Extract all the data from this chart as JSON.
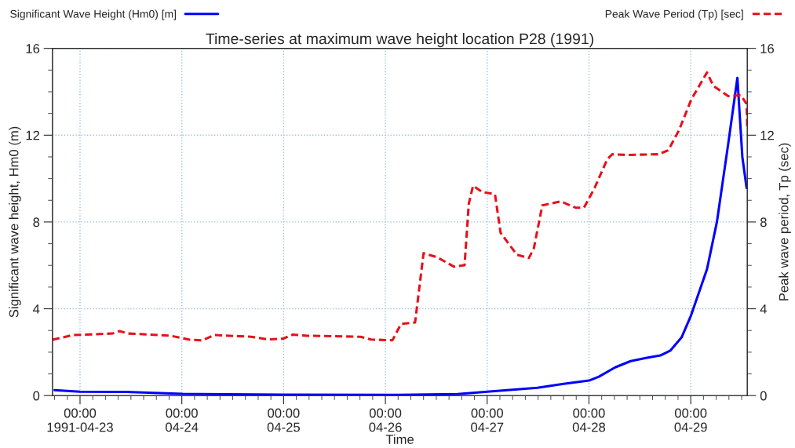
{
  "chart_data": {
    "type": "line",
    "title": "Time-series at maximum wave height location P28 (1991)",
    "xlabel": "Time",
    "ylabel": "Significant wave height, Hm0 (m)",
    "y2label": "Peak wave period, Tp (sec)",
    "xlim": [
      "1991-04-22T17:30",
      "1991-04-29T13:20"
    ],
    "xticks": [
      {
        "value": "1991-04-23",
        "label": "00:00\n1991-04-23"
      },
      {
        "value": "1991-04-24",
        "label": "00:00\n04-24"
      },
      {
        "value": "1991-04-25",
        "label": "00:00\n04-25"
      },
      {
        "value": "1991-04-26",
        "label": "00:00\n04-26"
      },
      {
        "value": "1991-04-27",
        "label": "00:00\n04-27"
      },
      {
        "value": "1991-04-28",
        "label": "00:00\n04-28"
      },
      {
        "value": "1991-04-29",
        "label": "00:00\n04-29"
      }
    ],
    "ylim": [
      0,
      16
    ],
    "yticks": [
      0,
      4,
      8,
      12,
      16
    ],
    "y2lim": [
      0,
      16
    ],
    "y2ticks": [
      0,
      4,
      8,
      12,
      16
    ],
    "grid": true,
    "legend": "top",
    "series": [
      {
        "name": "Significant Wave Height (Hm0) [m]",
        "color": "#0000ff",
        "line_style": "solid",
        "x": [
          "1991-04-22T18:00",
          "1991-04-23T00:00",
          "1991-04-23T10:50",
          "1991-04-24T00:10",
          "1991-04-24T23:50",
          "1991-04-26T01:40",
          "1991-04-26T17:00",
          "1991-04-27T00:00",
          "1991-04-27T11:50",
          "1991-04-27T18:00",
          "1991-04-28T00:00",
          "1991-04-28T02:20",
          "1991-04-28T06:10",
          "1991-04-28T09:50",
          "1991-04-28T13:40",
          "1991-04-28T16:50",
          "1991-04-28T19:10",
          "1991-04-28T21:50",
          "1991-04-29T00:00",
          "1991-04-29T03:50",
          "1991-04-29T06:10",
          "1991-04-29T08:50",
          "1991-04-29T11:00",
          "1991-04-29T12:10",
          "1991-04-29T13:10"
        ],
        "values": [
          0.25,
          0.18,
          0.17,
          0.08,
          0.04,
          0.03,
          0.07,
          0.18,
          0.36,
          0.54,
          0.69,
          0.87,
          1.3,
          1.59,
          1.74,
          1.85,
          2.07,
          2.68,
          3.66,
          5.83,
          8.0,
          11.6,
          14.64,
          11.0,
          9.57
        ]
      },
      {
        "name": "Peak Wave Period (Tp) [sec]",
        "color": "#e8101a",
        "line_style": "dashed",
        "axis": "y2",
        "x": [
          "1991-04-22T17:30",
          "1991-04-22T22:20",
          "1991-04-23T00:00",
          "1991-04-23T07:40",
          "1991-04-23T09:20",
          "1991-04-23T11:20",
          "1991-04-23T21:20",
          "1991-04-24T01:40",
          "1991-04-24T04:50",
          "1991-04-24T07:40",
          "1991-04-24T16:20",
          "1991-04-24T20:10",
          "1991-04-24T23:50",
          "1991-04-25T02:10",
          "1991-04-25T05:20",
          "1991-04-25T18:10",
          "1991-04-25T20:40",
          "1991-04-26T01:40",
          "1991-04-26T03:40",
          "1991-04-26T07:00",
          "1991-04-26T09:00",
          "1991-04-26T12:10",
          "1991-04-26T16:10",
          "1991-04-26T18:40",
          "1991-04-26T19:40",
          "1991-04-26T20:40",
          "1991-04-26T22:50",
          "1991-04-27T01:50",
          "1991-04-27T03:10",
          "1991-04-27T07:00",
          "1991-04-27T09:50",
          "1991-04-27T11:00",
          "1991-04-27T13:00",
          "1991-04-27T17:20",
          "1991-04-27T20:50",
          "1991-04-27T22:50",
          "1991-04-28T01:20",
          "1991-04-28T04:20",
          "1991-04-28T05:30",
          "1991-04-28T08:50",
          "1991-04-28T16:20",
          "1991-04-28T18:40",
          "1991-04-28T21:10",
          "1991-04-29T00:10",
          "1991-04-29T03:50",
          "1991-04-29T05:20",
          "1991-04-29T08:50",
          "1991-04-29T11:50",
          "1991-04-29T13:10",
          "1991-04-29T13:20"
        ],
        "values": [
          2.57,
          2.79,
          2.8,
          2.86,
          2.97,
          2.86,
          2.76,
          2.58,
          2.54,
          2.79,
          2.71,
          2.59,
          2.62,
          2.81,
          2.76,
          2.71,
          2.58,
          2.55,
          3.3,
          3.37,
          6.56,
          6.38,
          5.94,
          6.01,
          8.84,
          9.67,
          9.38,
          9.28,
          7.5,
          6.49,
          6.34,
          6.78,
          8.77,
          8.95,
          8.66,
          8.66,
          9.57,
          10.9,
          11.12,
          11.09,
          11.12,
          11.3,
          12.2,
          13.66,
          14.89,
          14.27,
          13.8,
          13.84,
          13.44,
          12.36
        ]
      }
    ]
  }
}
